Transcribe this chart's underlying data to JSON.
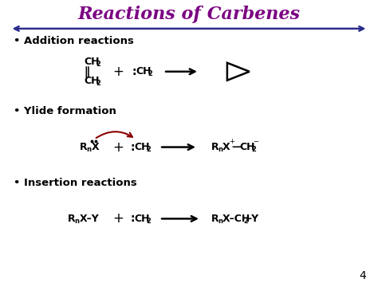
{
  "title": "Reactions of Carbenes",
  "title_color": "#7B0082",
  "title_fontsize": 16,
  "bg_color": "#FFFFFF",
  "line_color": "#2B2B8B",
  "page_number": "4",
  "bullet1": "Addition reactions",
  "bullet2": "Ylide formation",
  "bullet3": "Insertion reactions",
  "bullet_fontsize": 9.5,
  "chem_fontsize": 9
}
